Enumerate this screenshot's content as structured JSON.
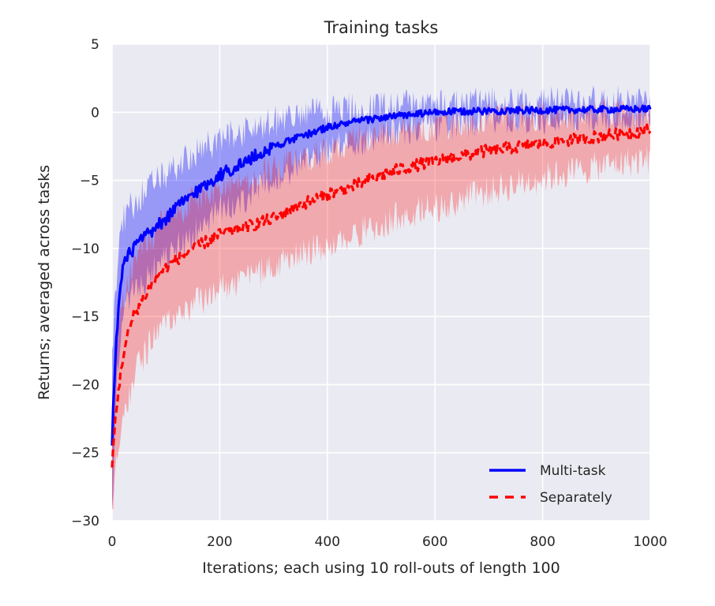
{
  "chart_data": {
    "type": "line",
    "title": "Training tasks",
    "xlabel": "Iterations; each using 10 roll-outs of length 100",
    "ylabel": "Returns; averaged across tasks",
    "xlim": [
      0,
      1000
    ],
    "ylim": [
      -30,
      5
    ],
    "xticks": [
      0,
      200,
      400,
      600,
      800,
      1000
    ],
    "yticks": [
      5,
      0,
      -5,
      -10,
      -15,
      -20,
      -25,
      -30
    ],
    "xtick_labels": [
      "0",
      "200",
      "400",
      "600",
      "800",
      "1000"
    ],
    "ytick_labels": [
      "5",
      "0",
      "−5",
      "−10",
      "−15",
      "−20",
      "−25",
      "−30"
    ],
    "grid": true,
    "background": "#eaeaf2",
    "legend_position": "bottom-right",
    "series": [
      {
        "name": "Multi-task",
        "color": "#0000ff",
        "style": "solid",
        "x": [
          0,
          5,
          10,
          15,
          20,
          30,
          40,
          50,
          60,
          80,
          100,
          120,
          150,
          200,
          250,
          300,
          350,
          400,
          450,
          500,
          550,
          600,
          650,
          700,
          800,
          900,
          1000
        ],
        "y": [
          -24,
          -19,
          -15.5,
          -13,
          -11.5,
          -10.5,
          -10,
          -9.5,
          -9.2,
          -8.6,
          -7.8,
          -7,
          -6,
          -4.6,
          -3.6,
          -2.5,
          -1.8,
          -1.1,
          -0.7,
          -0.4,
          -0.2,
          0,
          0.05,
          0.1,
          0.15,
          0.2,
          0.25
        ],
        "band_lower": [
          -29,
          -24,
          -19.5,
          -16.5,
          -15,
          -14,
          -13.2,
          -12.8,
          -12.4,
          -11.6,
          -10.8,
          -10,
          -9,
          -7.4,
          -6.2,
          -4.8,
          -3.8,
          -2.9,
          -2.2,
          -1.7,
          -1.3,
          -1,
          -0.8,
          -0.7,
          -0.5,
          -0.4,
          -0.3
        ],
        "band_upper": [
          -18,
          -14,
          -11,
          -9,
          -8,
          -7.2,
          -6.8,
          -6.2,
          -5.8,
          -5.2,
          -4.6,
          -4,
          -3.2,
          -2,
          -1.3,
          -0.7,
          -0.3,
          0.1,
          0.3,
          0.5,
          0.6,
          0.7,
          0.7,
          0.75,
          0.8,
          0.8,
          0.8
        ]
      },
      {
        "name": "Separately",
        "color": "#ff0000",
        "style": "dashed",
        "x": [
          0,
          5,
          10,
          15,
          20,
          30,
          40,
          50,
          60,
          80,
          100,
          120,
          150,
          200,
          250,
          300,
          350,
          400,
          450,
          500,
          550,
          600,
          650,
          700,
          800,
          900,
          1000
        ],
        "y": [
          -26,
          -23,
          -21,
          -19.5,
          -18,
          -16.2,
          -15,
          -14.2,
          -13.5,
          -12.2,
          -11.4,
          -10.8,
          -10,
          -9,
          -8.4,
          -7.8,
          -6.8,
          -6,
          -5.4,
          -4.6,
          -4,
          -3.6,
          -3.2,
          -2.8,
          -2.3,
          -1.8,
          -1.3
        ],
        "band_lower": [
          -30,
          -27,
          -25.5,
          -24,
          -22.5,
          -21,
          -19.5,
          -18.5,
          -17.8,
          -16.5,
          -15.6,
          -15,
          -14.2,
          -13,
          -12.2,
          -11.4,
          -10.4,
          -9.6,
          -9,
          -8.2,
          -7.4,
          -7,
          -6.4,
          -5.8,
          -4.8,
          -4,
          -3.4
        ],
        "band_upper": [
          -22,
          -19,
          -17,
          -15.5,
          -14,
          -12.5,
          -11.2,
          -10.4,
          -9.8,
          -8.8,
          -8,
          -7.4,
          -6.6,
          -5.6,
          -4.8,
          -4.2,
          -3.4,
          -2.8,
          -2.2,
          -1.6,
          -1.2,
          -0.9,
          -0.7,
          -0.5,
          -0.2,
          -0.1,
          -0.1
        ]
      }
    ]
  }
}
